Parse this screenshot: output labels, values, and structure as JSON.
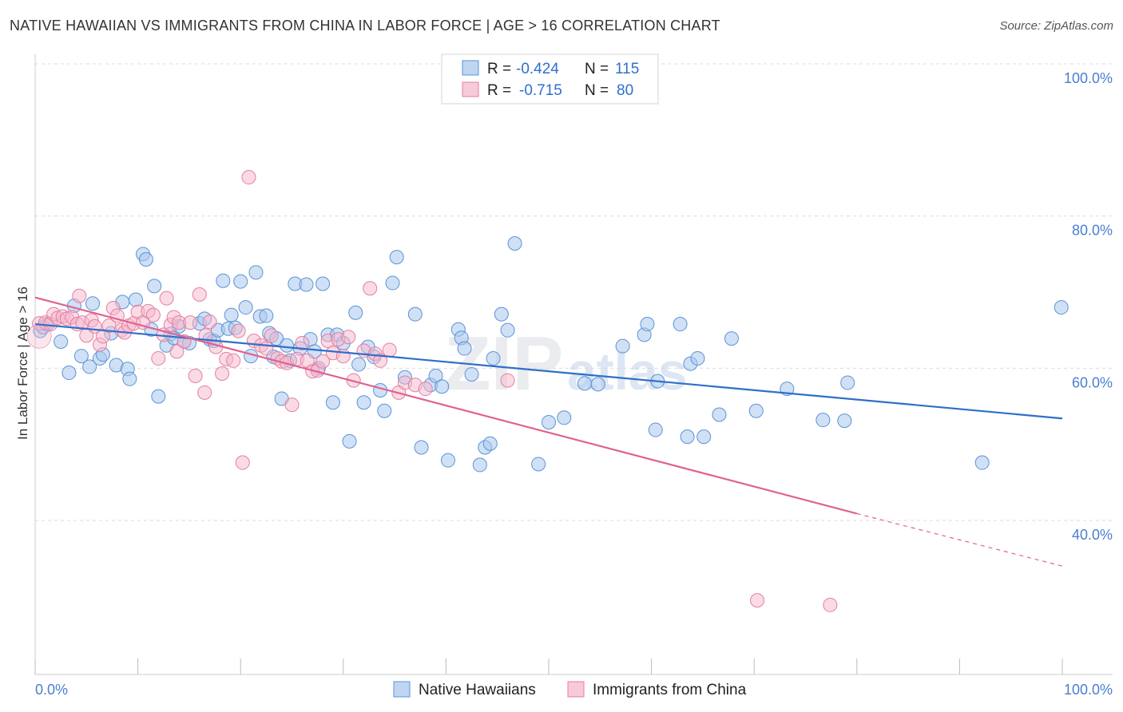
{
  "title": "NATIVE HAWAIIAN VS IMMIGRANTS FROM CHINA IN LABOR FORCE | AGE > 16 CORRELATION CHART",
  "source": "Source: ZipAtlas.com",
  "watermark": {
    "zip": "ZIP",
    "atlas": "atlas"
  },
  "colors": {
    "blue_fill": "#a9c8ee",
    "blue_stroke": "#5b93d6",
    "blue_line": "#2e6fcb",
    "pink_fill": "#f5b8cc",
    "pink_stroke": "#e57ea0",
    "pink_line": "#e0628e",
    "grid": "#dcdcdc",
    "axis_label": "#4a7fcf"
  },
  "legend_box": {
    "rows": [
      {
        "r_label": "R =",
        "r_value": "-0.424",
        "n_label": "N =",
        "n_value": "115"
      },
      {
        "r_label": "R =",
        "r_value": "-0.715",
        "n_label": "N =",
        "n_value": "80"
      }
    ]
  },
  "chart_data": {
    "type": "scatter",
    "title": "NATIVE HAWAIIAN VS IMMIGRANTS FROM CHINA IN LABOR FORCE | AGE > 16 CORRELATION CHART",
    "xlabel": "",
    "ylabel": "In Labor Force | Age > 16",
    "xlim": [
      0,
      100
    ],
    "ylim": [
      20,
      100
    ],
    "x_tick_labels": [
      "0.0%",
      "100.0%"
    ],
    "y_tick_labels": [
      "100.0%",
      "80.0%",
      "60.0%",
      "40.0%"
    ],
    "y_ticks": [
      100,
      80,
      60,
      40
    ],
    "x_minor_ticks": [
      0,
      10,
      20,
      30,
      40,
      50,
      60,
      70,
      80,
      90,
      100
    ],
    "grid": true,
    "legend_position": "top-center",
    "series": [
      {
        "name": "Native Hawaiians",
        "r": -0.424,
        "n": 115,
        "trend": {
          "x": [
            0,
            100
          ],
          "y": [
            65.8,
            53.4
          ]
        },
        "points": [
          [
            0.5,
            64.9
          ],
          [
            0.8,
            65.4
          ],
          [
            1.2,
            65.8
          ],
          [
            2.5,
            63.5
          ],
          [
            3.3,
            59.4
          ],
          [
            3.8,
            68.2
          ],
          [
            4.5,
            61.6
          ],
          [
            5.3,
            60.2
          ],
          [
            5.6,
            68.5
          ],
          [
            6.3,
            61.3
          ],
          [
            6.6,
            61.8
          ],
          [
            7.4,
            64.6
          ],
          [
            7.9,
            60.4
          ],
          [
            8.5,
            68.7
          ],
          [
            9.0,
            59.9
          ],
          [
            9.2,
            58.6
          ],
          [
            9.8,
            69.0
          ],
          [
            10.5,
            75.0
          ],
          [
            10.8,
            74.3
          ],
          [
            11.3,
            65.1
          ],
          [
            11.6,
            70.8
          ],
          [
            12.0,
            56.3
          ],
          [
            12.8,
            63.0
          ],
          [
            13.2,
            64.5
          ],
          [
            13.5,
            64.0
          ],
          [
            14.0,
            65.5
          ],
          [
            14.5,
            63.5
          ],
          [
            15.0,
            63.3
          ],
          [
            16.0,
            65.9
          ],
          [
            16.5,
            66.5
          ],
          [
            17.0,
            63.8
          ],
          [
            17.4,
            63.6
          ],
          [
            17.8,
            65.0
          ],
          [
            18.3,
            71.5
          ],
          [
            18.8,
            65.2
          ],
          [
            19.1,
            67.0
          ],
          [
            19.5,
            65.3
          ],
          [
            20.0,
            71.4
          ],
          [
            20.5,
            68.0
          ],
          [
            21.0,
            61.6
          ],
          [
            21.5,
            72.6
          ],
          [
            21.9,
            66.8
          ],
          [
            22.5,
            66.9
          ],
          [
            22.8,
            64.6
          ],
          [
            23.2,
            61.5
          ],
          [
            23.5,
            63.9
          ],
          [
            24.0,
            56.0
          ],
          [
            24.5,
            63.0
          ],
          [
            24.8,
            61.0
          ],
          [
            25.3,
            71.1
          ],
          [
            25.8,
            62.6
          ],
          [
            26.4,
            71.0
          ],
          [
            26.8,
            63.8
          ],
          [
            27.2,
            62.2
          ],
          [
            27.6,
            60.0
          ],
          [
            28.0,
            71.1
          ],
          [
            28.5,
            64.4
          ],
          [
            29.0,
            55.5
          ],
          [
            29.4,
            64.4
          ],
          [
            30.0,
            63.3
          ],
          [
            30.6,
            50.4
          ],
          [
            31.2,
            67.3
          ],
          [
            31.5,
            60.5
          ],
          [
            32.0,
            55.5
          ],
          [
            32.4,
            62.8
          ],
          [
            33.0,
            61.5
          ],
          [
            33.6,
            57.1
          ],
          [
            34.0,
            54.4
          ],
          [
            34.8,
            71.2
          ],
          [
            35.2,
            74.6
          ],
          [
            36.0,
            58.8
          ],
          [
            37.0,
            67.1
          ],
          [
            37.6,
            49.6
          ],
          [
            38.5,
            57.8
          ],
          [
            39.0,
            59.0
          ],
          [
            39.6,
            57.6
          ],
          [
            40.2,
            47.9
          ],
          [
            41.2,
            65.1
          ],
          [
            41.5,
            64.0
          ],
          [
            41.8,
            62.6
          ],
          [
            42.5,
            59.2
          ],
          [
            43.3,
            47.3
          ],
          [
            43.8,
            49.6
          ],
          [
            44.3,
            50.1
          ],
          [
            44.6,
            61.3
          ],
          [
            45.4,
            67.1
          ],
          [
            46.0,
            65.0
          ],
          [
            46.7,
            76.4
          ],
          [
            49.0,
            47.4
          ],
          [
            50.0,
            52.9
          ],
          [
            51.5,
            53.5
          ],
          [
            53.5,
            58.0
          ],
          [
            54.8,
            57.9
          ],
          [
            57.2,
            62.9
          ],
          [
            59.3,
            64.4
          ],
          [
            59.6,
            65.8
          ],
          [
            60.4,
            51.9
          ],
          [
            60.6,
            58.3
          ],
          [
            62.8,
            65.8
          ],
          [
            63.5,
            51.0
          ],
          [
            63.8,
            60.6
          ],
          [
            64.5,
            61.3
          ],
          [
            65.1,
            51.0
          ],
          [
            66.6,
            53.9
          ],
          [
            67.8,
            63.9
          ],
          [
            70.2,
            54.4
          ],
          [
            73.2,
            57.3
          ],
          [
            76.7,
            53.2
          ],
          [
            78.8,
            53.1
          ],
          [
            79.1,
            58.1
          ],
          [
            92.2,
            47.6
          ],
          [
            99.9,
            68.0
          ]
        ]
      },
      {
        "name": "Immigrants from China",
        "r": -0.715,
        "n": 80,
        "trend": {
          "x": [
            0,
            80
          ],
          "y": [
            69.3,
            40.9
          ]
        },
        "trend_dashed": {
          "x": [
            80,
            100
          ],
          "y": [
            40.9,
            34.0
          ]
        },
        "points": [
          [
            0.4,
            65.9
          ],
          [
            1.0,
            66.0
          ],
          [
            1.5,
            65.8
          ],
          [
            1.8,
            67.1
          ],
          [
            2.2,
            66.6
          ],
          [
            2.7,
            66.8
          ],
          [
            3.1,
            66.5
          ],
          [
            3.6,
            66.7
          ],
          [
            4.1,
            65.8
          ],
          [
            4.3,
            69.5
          ],
          [
            4.6,
            66.0
          ],
          [
            5.0,
            64.3
          ],
          [
            5.5,
            66.3
          ],
          [
            5.8,
            65.5
          ],
          [
            6.3,
            63.1
          ],
          [
            6.6,
            64.2
          ],
          [
            7.2,
            65.6
          ],
          [
            7.6,
            67.9
          ],
          [
            8.0,
            66.9
          ],
          [
            8.4,
            65.0
          ],
          [
            8.7,
            64.7
          ],
          [
            9.1,
            65.6
          ],
          [
            9.6,
            65.9
          ],
          [
            10.0,
            67.4
          ],
          [
            10.5,
            66.0
          ],
          [
            11.0,
            67.5
          ],
          [
            11.5,
            67.0
          ],
          [
            12.0,
            61.3
          ],
          [
            12.5,
            64.4
          ],
          [
            12.8,
            69.2
          ],
          [
            13.2,
            65.7
          ],
          [
            13.5,
            66.7
          ],
          [
            14.0,
            66.0
          ],
          [
            14.5,
            63.5
          ],
          [
            15.1,
            66.0
          ],
          [
            15.6,
            59.0
          ],
          [
            16.0,
            69.7
          ],
          [
            16.6,
            64.3
          ],
          [
            17.0,
            66.1
          ],
          [
            17.6,
            62.8
          ],
          [
            18.2,
            59.3
          ],
          [
            18.6,
            61.2
          ],
          [
            19.3,
            61.0
          ],
          [
            19.8,
            64.9
          ],
          [
            20.2,
            47.6
          ],
          [
            20.8,
            85.1
          ],
          [
            21.3,
            63.6
          ],
          [
            22.0,
            63.0
          ],
          [
            22.5,
            62.6
          ],
          [
            23.0,
            64.3
          ],
          [
            23.6,
            61.3
          ],
          [
            24.0,
            60.9
          ],
          [
            24.5,
            60.7
          ],
          [
            25.0,
            55.2
          ],
          [
            25.5,
            61.2
          ],
          [
            26.0,
            63.3
          ],
          [
            26.5,
            61.0
          ],
          [
            27.0,
            59.6
          ],
          [
            27.5,
            59.7
          ],
          [
            28.0,
            60.9
          ],
          [
            28.5,
            63.6
          ],
          [
            29.0,
            62.0
          ],
          [
            29.5,
            63.8
          ],
          [
            30.0,
            61.6
          ],
          [
            30.5,
            64.1
          ],
          [
            31.0,
            58.4
          ],
          [
            32.0,
            62.3
          ],
          [
            32.6,
            70.5
          ],
          [
            33.1,
            61.9
          ],
          [
            33.6,
            61.0
          ],
          [
            34.5,
            62.4
          ],
          [
            35.4,
            56.8
          ],
          [
            36.0,
            58.1
          ],
          [
            37.0,
            57.8
          ],
          [
            38.0,
            57.3
          ],
          [
            46.0,
            58.4
          ],
          [
            70.3,
            29.5
          ],
          [
            77.4,
            28.9
          ],
          [
            16.5,
            56.8
          ],
          [
            13.8,
            62.2
          ]
        ]
      }
    ]
  },
  "bottom_legend": [
    "Native Hawaiians",
    "Immigrants from China"
  ],
  "axis": {
    "ylabel": "In Labor Force | Age > 16",
    "x_left": "0.0%",
    "x_right": "100.0%"
  }
}
